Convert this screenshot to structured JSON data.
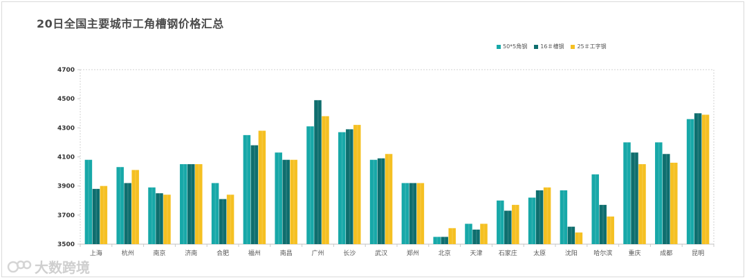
{
  "title": "20日全国主要城市工角槽钢价格汇总",
  "watermark": "大数跨境",
  "colors": {
    "angle": "#17a8a8",
    "channel": "#0e6e6e",
    "ibeam": "#f5c022"
  },
  "chart_data": {
    "type": "bar",
    "ylim": [
      3500,
      4700
    ],
    "yticks": [
      3500,
      3700,
      3900,
      4100,
      4300,
      4500,
      4700
    ],
    "legend_position": "top-right",
    "categories": [
      "上海",
      "杭州",
      "南京",
      "济南",
      "合肥",
      "福州",
      "南昌",
      "广州",
      "长沙",
      "武汉",
      "郑州",
      "北京",
      "天津",
      "石家庄",
      "太原",
      "沈阳",
      "哈尔滨",
      "重庆",
      "成都",
      "昆明"
    ],
    "series": [
      {
        "name": "50*5角钢",
        "color": "#17a8a8",
        "values": [
          4080,
          4030,
          3890,
          4050,
          3920,
          4250,
          4130,
          4310,
          4270,
          4080,
          3920,
          3550,
          3640,
          3800,
          3820,
          3870,
          3980,
          4200,
          4200,
          4360
        ]
      },
      {
        "name": "16＃槽钢",
        "color": "#0e6e6e",
        "values": [
          3880,
          3920,
          3850,
          4050,
          3810,
          4180,
          4080,
          4490,
          4290,
          4090,
          3920,
          3550,
          3600,
          3730,
          3870,
          3620,
          3770,
          4130,
          4120,
          4400
        ]
      },
      {
        "name": "25＃工字钢",
        "color": "#f5c022",
        "values": [
          3900,
          4010,
          3840,
          4050,
          3840,
          4280,
          4080,
          4380,
          4320,
          4120,
          3920,
          3610,
          3640,
          3770,
          3890,
          3580,
          3690,
          4050,
          4060,
          4390
        ]
      }
    ]
  }
}
